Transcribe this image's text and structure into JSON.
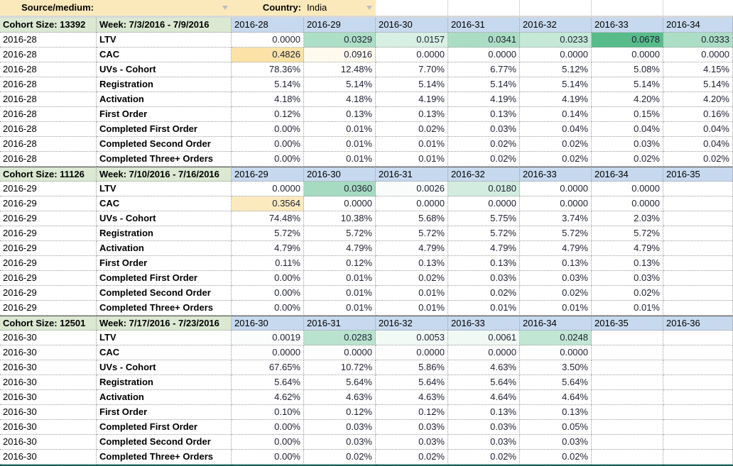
{
  "toolbar": {
    "source_medium_label": "Source/medium:",
    "source_medium_value": "",
    "country_label": "Country:",
    "country_value": "India"
  },
  "heatmaps": {
    "LTV": {
      "max_value": 0.0678,
      "max_color": "#57bb8a"
    },
    "CAC": {
      "max_value": 0.4826,
      "max_color": "#fbe3a8"
    }
  },
  "colors": {
    "toolbar_bg": "#fce9bb",
    "section_label_bg": "#dbe8d2",
    "column_header_bg": "#c7d9ee",
    "ltv_heatmap_max": "#57bb8a",
    "cac_heatmap_max": "#fbe3a8",
    "bottom_bar": "#156158"
  },
  "table": {
    "sections": [
      {
        "cohort_size_label": "Cohort Size: 13392",
        "week_label": "Week: 7/3/2016 - 7/9/2016",
        "cohort_id": "2016-28",
        "columns": [
          "2016-28",
          "2016-29",
          "2016-30",
          "2016-31",
          "2016-32",
          "2016-33",
          "2016-34"
        ],
        "rows": [
          {
            "label": "LTV",
            "values": [
              "0.0000",
              "0.0329",
              "0.0157",
              "0.0341",
              "0.0233",
              "0.0678",
              "0.0333"
            ]
          },
          {
            "label": "CAC",
            "values": [
              "0.4826",
              "0.0916",
              "0.0000",
              "0.0000",
              "0.0000",
              "0.0000",
              "0.0000"
            ]
          },
          {
            "label": "UVs - Cohort",
            "values": [
              "78.36%",
              "12.48%",
              "7.70%",
              "6.77%",
              "5.12%",
              "5.08%",
              "4.15%"
            ]
          },
          {
            "label": "Registration",
            "values": [
              "5.14%",
              "5.14%",
              "5.14%",
              "5.14%",
              "5.14%",
              "5.14%",
              "5.14%"
            ]
          },
          {
            "label": "Activation",
            "values": [
              "4.18%",
              "4.18%",
              "4.19%",
              "4.19%",
              "4.19%",
              "4.20%",
              "4.20%"
            ]
          },
          {
            "label": "First Order",
            "values": [
              "0.12%",
              "0.13%",
              "0.13%",
              "0.13%",
              "0.14%",
              "0.15%",
              "0.16%"
            ]
          },
          {
            "label": "Completed First Order",
            "values": [
              "0.00%",
              "0.01%",
              "0.02%",
              "0.03%",
              "0.04%",
              "0.04%",
              "0.04%"
            ]
          },
          {
            "label": "Completed Second Order",
            "values": [
              "0.00%",
              "0.01%",
              "0.01%",
              "0.02%",
              "0.02%",
              "0.03%",
              "0.04%"
            ]
          },
          {
            "label": "Completed Three+ Orders",
            "values": [
              "0.00%",
              "0.01%",
              "0.01%",
              "0.02%",
              "0.02%",
              "0.02%",
              "0.02%"
            ]
          }
        ]
      },
      {
        "cohort_size_label": "Cohort Size: 11126",
        "week_label": "Week: 7/10/2016 - 7/16/2016",
        "cohort_id": "2016-29",
        "columns": [
          "2016-29",
          "2016-30",
          "2016-31",
          "2016-32",
          "2016-33",
          "2016-34",
          "2016-35"
        ],
        "rows": [
          {
            "label": "LTV",
            "values": [
              "0.0000",
              "0.0360",
              "0.0026",
              "0.0180",
              "0.0000",
              "0.0000",
              ""
            ]
          },
          {
            "label": "CAC",
            "values": [
              "0.3564",
              "0.0000",
              "0.0000",
              "0.0000",
              "0.0000",
              "0.0000",
              ""
            ]
          },
          {
            "label": "UVs - Cohort",
            "values": [
              "74.48%",
              "10.38%",
              "5.68%",
              "5.75%",
              "3.74%",
              "2.03%",
              ""
            ]
          },
          {
            "label": "Registration",
            "values": [
              "5.72%",
              "5.72%",
              "5.72%",
              "5.72%",
              "5.72%",
              "5.72%",
              ""
            ]
          },
          {
            "label": "Activation",
            "values": [
              "4.79%",
              "4.79%",
              "4.79%",
              "4.79%",
              "4.79%",
              "4.79%",
              ""
            ]
          },
          {
            "label": "First Order",
            "values": [
              "0.11%",
              "0.12%",
              "0.13%",
              "0.13%",
              "0.13%",
              "0.13%",
              ""
            ]
          },
          {
            "label": "Completed First Order",
            "values": [
              "0.00%",
              "0.01%",
              "0.02%",
              "0.03%",
              "0.03%",
              "0.03%",
              ""
            ]
          },
          {
            "label": "Completed Second Order",
            "values": [
              "0.00%",
              "0.01%",
              "0.01%",
              "0.02%",
              "0.02%",
              "0.02%",
              ""
            ]
          },
          {
            "label": "Completed Three+ Orders",
            "values": [
              "0.00%",
              "0.01%",
              "0.01%",
              "0.01%",
              "0.01%",
              "0.01%",
              ""
            ]
          }
        ]
      },
      {
        "cohort_size_label": "Cohort Size: 12501",
        "week_label": "Week: 7/17/2016 - 7/23/2016",
        "cohort_id": "2016-30",
        "columns": [
          "2016-30",
          "2016-31",
          "2016-32",
          "2016-33",
          "2016-34",
          "2016-35",
          "2016-36"
        ],
        "rows": [
          {
            "label": "LTV",
            "values": [
              "0.0019",
              "0.0283",
              "0.0053",
              "0.0061",
              "0.0248",
              "",
              ""
            ]
          },
          {
            "label": "CAC",
            "values": [
              "0.0000",
              "0.0000",
              "0.0000",
              "0.0000",
              "0.0000",
              "",
              ""
            ]
          },
          {
            "label": "UVs - Cohort",
            "values": [
              "67.65%",
              "10.72%",
              "5.86%",
              "4.63%",
              "3.50%",
              "",
              ""
            ]
          },
          {
            "label": "Registration",
            "values": [
              "5.64%",
              "5.64%",
              "5.64%",
              "5.64%",
              "5.64%",
              "",
              ""
            ]
          },
          {
            "label": "Activation",
            "values": [
              "4.62%",
              "4.63%",
              "4.63%",
              "4.64%",
              "4.64%",
              "",
              ""
            ]
          },
          {
            "label": "First Order",
            "values": [
              "0.10%",
              "0.12%",
              "0.12%",
              "0.13%",
              "0.13%",
              "",
              ""
            ]
          },
          {
            "label": "Completed First Order",
            "values": [
              "0.00%",
              "0.03%",
              "0.03%",
              "0.03%",
              "0.05%",
              "",
              ""
            ]
          },
          {
            "label": "Completed Second Order",
            "values": [
              "0.00%",
              "0.03%",
              "0.03%",
              "0.03%",
              "0.03%",
              "",
              ""
            ]
          },
          {
            "label": "Completed Three+ Orders",
            "values": [
              "0.00%",
              "0.02%",
              "0.02%",
              "0.02%",
              "0.02%",
              "",
              ""
            ]
          }
        ]
      }
    ]
  }
}
